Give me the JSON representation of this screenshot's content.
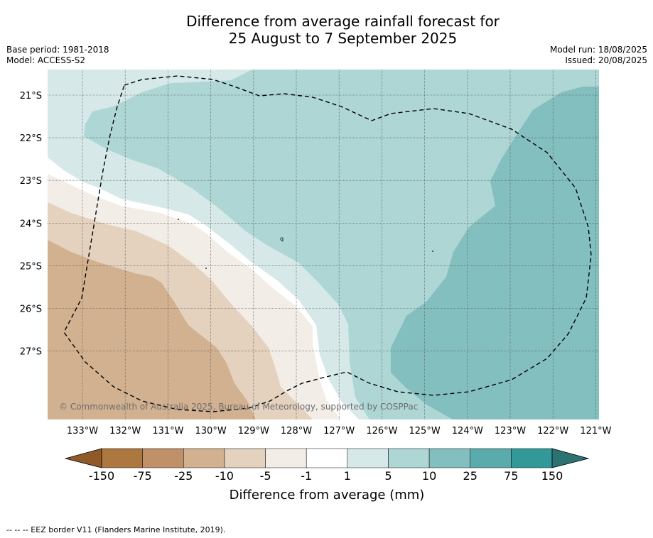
{
  "title": {
    "line1": "Difference from average rainfall forecast for",
    "line2": "25 August to 7 September 2025"
  },
  "meta_left": {
    "base_period": "Base period: 1981-2018",
    "model": "Model: ACCESS-S2"
  },
  "meta_right": {
    "model_run": "Model run: 18/08/2025",
    "issued": "Issued: 20/08/2025"
  },
  "map": {
    "lat_labels": [
      "21°S",
      "22°S",
      "23°S",
      "24°S",
      "25°S",
      "26°S",
      "27°S"
    ],
    "lon_labels": [
      "133°W",
      "132°W",
      "131°W",
      "130°W",
      "129°W",
      "128°W",
      "127°W",
      "126°W",
      "125°W",
      "124°W",
      "123°W",
      "122°W",
      "121°W"
    ],
    "copyright": "© Commonwealth of Australia 2025, Bureau of Meteorology, supported by COSPPac",
    "region_colors": {
      "dry_25": "#d2b190",
      "dry_10": "#e4d1be",
      "dry_5": "#f2ede7",
      "neutral": "#ffffff",
      "wet_1": "#d6e9e8",
      "wet_5": "#add6d5",
      "wet_10": "#84bfbf"
    }
  },
  "colorbar": {
    "ticks": [
      "-150",
      "-75",
      "-25",
      "-10",
      "-5",
      "-1",
      "1",
      "5",
      "10",
      "25",
      "75",
      "150"
    ],
    "colors": [
      "#ad7740",
      "#c09068",
      "#d2b190",
      "#e4d1be",
      "#f2ede7",
      "#ffffff",
      "#d6e9e8",
      "#add6d5",
      "#84bfbf",
      "#5aabab",
      "#339898"
    ],
    "extend_low_color": "#8f5a27",
    "extend_high_color": "#2c7272",
    "label": "Difference from average (mm)"
  },
  "footer": "--  --  -- EEZ border V11 (Flanders Marine Institute, 2019)."
}
